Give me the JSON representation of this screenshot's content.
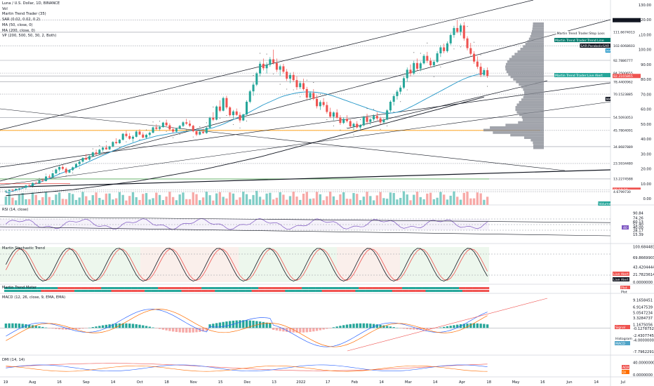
{
  "header": {
    "title": "Luna / U.S. Dollar, 1D, BINANCE",
    "indicators": [
      "Vol",
      "Martin Trend Trader (35)",
      "SAR (0.02, 0.02, 0.2)",
      "MA (50, close, 0)",
      "MA (200, close, 0)",
      "VP (200, 500, 50, 30, 2, Both)"
    ]
  },
  "panes": {
    "rsi": "RSI (14, close)",
    "stoch": "Martin Stochastic Trend",
    "mtm": "Martin Trend Meter",
    "macd": "MACD (12, 26, close, 9, EMA, EMA)",
    "dmi": "DMI (14, 14)"
  },
  "colors": {
    "up": "#26a69a",
    "down": "#ef5350",
    "ma50": "#2196c8",
    "ma200": "#131722",
    "sar": "#555555",
    "vp": "#8a8d96",
    "volUp": "#80cdc6",
    "volDown": "#f7a9a7",
    "accent": "#e91e63"
  },
  "chart_data": {
    "type": "candlestick",
    "symbol": "LUNAUSD",
    "price_axis_ticks": [
      "130.00",
      "120.00",
      "110.00",
      "100.00",
      "90.00",
      "80.00",
      "70.00",
      "60.00",
      "50.00",
      "40.00",
      "30.00",
      "20.00",
      "10.00",
      "0.00"
    ],
    "x_ticks": [
      "19",
      "Aug",
      "16",
      "Sep",
      "14",
      "Oct",
      "18",
      "Nov",
      "15",
      "Dec",
      "13",
      "2022",
      "17",
      "Feb",
      "14",
      "Mar",
      "14",
      "Apr",
      "18",
      "May",
      "16",
      "Jun",
      "14",
      "Jul"
    ],
    "price_tags": [
      {
        "value": "119.7690986",
        "color": "#131722"
      },
      {
        "value": "111.6674013",
        "color": "#ffffff"
      },
      {
        "value": "102.6068603",
        "color": "#ffffff"
      },
      {
        "value": "92.7886777",
        "color": "#ffffff"
      },
      {
        "value": "84.2500655",
        "color": "#ffffff"
      },
      {
        "value": "82.3165865",
        "color": "#ef5350"
      },
      {
        "value": "06:18:20",
        "color": "#ef5350"
      },
      {
        "value": "78.4400962",
        "color": "#ffffff"
      },
      {
        "value": "70.1523885",
        "color": "#ffffff"
      },
      {
        "value": "54.5093053",
        "color": "#ffffff"
      },
      {
        "value": "45.7804091",
        "color": "#ffffff"
      },
      {
        "value": "34.8687889",
        "color": "#ffffff"
      },
      {
        "value": "23.5934480",
        "color": "#ffffff"
      },
      {
        "value": "13.2274588",
        "color": "#ffffff"
      },
      {
        "value": "4.6799730",
        "color": "#ffffff"
      }
    ],
    "labels": [
      {
        "text": "Martin Trend Trader:Stop Loss",
        "color": "#ffffff"
      },
      {
        "text": "Martin Trend Trader:Trend Line",
        "color": "#00796b"
      },
      {
        "text": "SAR:ParabolicSAR",
        "color": "#131722"
      },
      {
        "text": "MA",
        "color": "#2196c8"
      },
      {
        "text": "Martin Trend Trader:Live Alert",
        "color": "#26a69a"
      },
      {
        "text": "MA",
        "color": "#131722"
      },
      {
        "text": "Volume",
        "color": "#26a69a"
      }
    ],
    "rsi_ticks": [
      "90.84",
      "74.26",
      "60.13",
      "51.40",
      "40.00",
      "28.17",
      "15.39"
    ],
    "rsi_tag": "40",
    "stoch_ticks": [
      "100.6844836",
      "69.8669903",
      "43.4204444",
      "21.7823614",
      "0.0000000"
    ],
    "stoch_tags": [
      "Live Alert",
      "Live Alert"
    ],
    "mtm_tags": [
      "Plot",
      "Plot"
    ],
    "macd_ticks": [
      "9.1658451",
      "6.9147539",
      "5.0547234",
      "3.3284737",
      "1.1675056",
      "-0.1278752",
      "-2.4307745",
      "-4.0000000",
      "-7.7962291"
    ],
    "macd_tags": [
      "Signal",
      "Histogram",
      "MACD"
    ],
    "dmi_ticks": [
      "40.0000000",
      "0.0000000"
    ],
    "dmi_tags": [
      "ADX",
      "DI"
    ],
    "price_range": [
      0,
      130
    ],
    "candles_ohlc": [
      [
        5,
        5.6,
        4.5,
        5.2
      ],
      [
        5.2,
        6.1,
        5.0,
        5.9
      ],
      [
        5.9,
        6.3,
        5.4,
        5.6
      ],
      [
        5.6,
        6.8,
        5.5,
        6.6
      ],
      [
        6.6,
        7.2,
        6.2,
        6.9
      ],
      [
        6.9,
        7.5,
        6.5,
        7.3
      ],
      [
        7.3,
        9.2,
        7.1,
        8.8
      ],
      [
        8.8,
        9.6,
        8.0,
        8.4
      ],
      [
        8.4,
        10.8,
        8.3,
        10.5
      ],
      [
        10.5,
        11.5,
        9.6,
        10.1
      ],
      [
        10.1,
        12.8,
        10.0,
        12.2
      ],
      [
        12.2,
        13.5,
        11.2,
        11.8
      ],
      [
        11.8,
        15.5,
        11.5,
        14.8
      ],
      [
        14.8,
        16.2,
        13.8,
        14.2
      ],
      [
        14.2,
        17.4,
        14.0,
        17.0
      ],
      [
        17.0,
        20.2,
        16.5,
        19.5
      ],
      [
        19.5,
        22.0,
        18.2,
        21.2
      ],
      [
        21.2,
        22.5,
        19.0,
        20.0
      ],
      [
        20.0,
        21.0,
        16.5,
        17.5
      ],
      [
        17.5,
        19.8,
        17.0,
        19.2
      ],
      [
        19.2,
        21.5,
        18.5,
        21.0
      ],
      [
        21.0,
        24.0,
        20.5,
        23.2
      ],
      [
        23.2,
        25.5,
        22.0,
        24.8
      ],
      [
        24.8,
        27.8,
        24.2,
        27.3
      ],
      [
        27.3,
        30.0,
        25.8,
        26.2
      ],
      [
        26.2,
        29.0,
        25.5,
        28.5
      ],
      [
        28.5,
        31.5,
        27.8,
        31.0
      ],
      [
        31.0,
        33.0,
        29.0,
        30.0
      ],
      [
        30.0,
        33.5,
        29.5,
        32.8
      ],
      [
        32.8,
        35.0,
        31.5,
        34.2
      ],
      [
        34.2,
        36.0,
        32.8,
        33.1
      ],
      [
        33.1,
        35.5,
        32.5,
        35.0
      ],
      [
        35.0,
        38.5,
        34.5,
        38.0
      ],
      [
        38.0,
        40.5,
        36.5,
        37.2
      ],
      [
        37.2,
        40.0,
        36.8,
        39.5
      ],
      [
        39.5,
        44.0,
        39.0,
        43.5
      ],
      [
        43.5,
        45.5,
        41.0,
        42.0
      ],
      [
        42.0,
        44.0,
        39.5,
        40.2
      ],
      [
        40.2,
        42.5,
        38.0,
        41.5
      ],
      [
        41.5,
        46.0,
        41.0,
        45.0
      ],
      [
        45.0,
        46.5,
        42.5,
        43.0
      ],
      [
        43.0,
        44.5,
        40.5,
        41.0
      ],
      [
        41.0,
        43.5,
        40.0,
        42.8
      ],
      [
        42.8,
        45.0,
        41.5,
        44.2
      ],
      [
        44.2,
        48.5,
        43.8,
        47.8
      ],
      [
        47.8,
        50.0,
        46.0,
        46.8
      ],
      [
        46.8,
        49.0,
        45.5,
        48.0
      ],
      [
        48.0,
        51.5,
        47.5,
        51.0
      ],
      [
        51.0,
        53.0,
        48.5,
        49.2
      ],
      [
        49.2,
        50.5,
        45.5,
        46.5
      ],
      [
        46.5,
        48.0,
        44.0,
        45.0
      ],
      [
        45.0,
        47.5,
        44.5,
        47.0
      ],
      [
        47.0,
        49.5,
        46.5,
        48.8
      ],
      [
        48.8,
        52.0,
        48.0,
        51.2
      ],
      [
        51.2,
        53.5,
        49.5,
        50.3
      ],
      [
        50.3,
        52.5,
        48.0,
        48.9
      ],
      [
        48.9,
        49.5,
        44.5,
        45.2
      ],
      [
        45.2,
        46.0,
        42.0,
        43.0
      ],
      [
        43.0,
        45.5,
        42.5,
        44.8
      ],
      [
        44.8,
        47.0,
        43.5,
        44.0
      ],
      [
        44.0,
        48.0,
        43.5,
        47.5
      ],
      [
        47.5,
        55.0,
        47.0,
        54.2
      ],
      [
        54.2,
        58.0,
        52.0,
        53.0
      ],
      [
        53.0,
        62.5,
        52.5,
        61.8
      ],
      [
        61.8,
        66.0,
        58.0,
        59.0
      ],
      [
        59.0,
        68.5,
        58.5,
        67.5
      ],
      [
        67.5,
        69.0,
        60.0,
        61.2
      ],
      [
        61.2,
        62.0,
        55.0,
        56.0
      ],
      [
        56.0,
        59.5,
        53.5,
        58.5
      ],
      [
        58.5,
        60.5,
        55.5,
        56.2
      ],
      [
        56.2,
        58.0,
        51.0,
        52.5
      ],
      [
        52.5,
        57.0,
        52.0,
        56.5
      ],
      [
        56.5,
        66.0,
        56.0,
        65.0
      ],
      [
        65.0,
        73.0,
        64.0,
        72.0
      ],
      [
        72.0,
        78.0,
        69.0,
        76.5
      ],
      [
        76.5,
        85.0,
        75.5,
        84.0
      ],
      [
        84.0,
        92.0,
        82.0,
        90.5
      ],
      [
        90.5,
        94.0,
        86.0,
        87.5
      ],
      [
        87.5,
        91.5,
        84.0,
        89.8
      ],
      [
        89.8,
        95.0,
        88.5,
        93.5
      ],
      [
        93.5,
        100.0,
        90.0,
        91.0
      ],
      [
        91.0,
        94.0,
        85.0,
        86.5
      ],
      [
        86.5,
        90.0,
        82.5,
        88.8
      ],
      [
        88.8,
        90.5,
        84.0,
        85.2
      ],
      [
        85.2,
        87.0,
        79.0,
        80.5
      ],
      [
        80.5,
        84.5,
        77.5,
        83.0
      ],
      [
        83.0,
        85.0,
        78.5,
        79.5
      ],
      [
        79.5,
        82.0,
        73.0,
        74.8
      ],
      [
        74.8,
        79.0,
        73.5,
        77.5
      ],
      [
        77.5,
        80.5,
        72.5,
        73.5
      ],
      [
        73.5,
        75.0,
        66.5,
        67.8
      ],
      [
        67.8,
        72.0,
        66.0,
        70.9
      ],
      [
        70.9,
        73.5,
        66.0,
        67.0
      ],
      [
        67.0,
        69.5,
        60.5,
        62.0
      ],
      [
        62.0,
        66.0,
        59.5,
        64.8
      ],
      [
        64.8,
        67.5,
        61.5,
        62.8
      ],
      [
        62.8,
        65.0,
        57.0,
        58.2
      ],
      [
        58.2,
        61.0,
        54.0,
        55.0
      ],
      [
        55.0,
        58.5,
        52.5,
        57.8
      ],
      [
        57.8,
        60.0,
        53.5,
        54.3
      ],
      [
        54.3,
        56.0,
        49.5,
        50.8
      ],
      [
        50.8,
        54.5,
        50.0,
        53.5
      ],
      [
        53.5,
        56.0,
        51.0,
        52.0
      ],
      [
        52.0,
        53.0,
        47.5,
        48.5
      ],
      [
        48.5,
        51.0,
        46.0,
        50.2
      ],
      [
        50.2,
        52.0,
        47.0,
        47.8
      ],
      [
        47.8,
        50.0,
        46.5,
        49.2
      ],
      [
        49.2,
        55.5,
        48.5,
        54.8
      ],
      [
        54.8,
        57.0,
        50.5,
        51.5
      ],
      [
        51.5,
        54.0,
        49.5,
        53.2
      ],
      [
        53.2,
        56.5,
        52.0,
        55.5
      ],
      [
        55.5,
        58.0,
        52.5,
        53.8
      ],
      [
        53.8,
        55.0,
        50.0,
        51.2
      ],
      [
        51.2,
        54.0,
        50.5,
        53.0
      ],
      [
        53.0,
        60.0,
        52.5,
        59.2
      ],
      [
        59.2,
        66.0,
        58.0,
        65.0
      ],
      [
        65.0,
        70.0,
        62.5,
        68.8
      ],
      [
        68.8,
        73.0,
        66.5,
        71.8
      ],
      [
        71.8,
        76.0,
        70.0,
        74.5
      ],
      [
        74.5,
        82.0,
        73.5,
        80.8
      ],
      [
        80.8,
        88.0,
        78.5,
        86.5
      ],
      [
        86.5,
        90.0,
        82.0,
        84.0
      ],
      [
        84.0,
        92.5,
        83.0,
        91.0
      ],
      [
        91.0,
        94.0,
        86.0,
        87.2
      ],
      [
        87.2,
        92.0,
        85.5,
        90.8
      ],
      [
        90.8,
        97.0,
        90.0,
        95.8
      ],
      [
        95.8,
        98.5,
        91.0,
        92.5
      ],
      [
        92.5,
        94.5,
        88.0,
        89.5
      ],
      [
        89.5,
        93.0,
        88.0,
        91.8
      ],
      [
        91.8,
        99.0,
        91.0,
        97.5
      ],
      [
        97.5,
        103.0,
        95.0,
        101.5
      ],
      [
        101.5,
        104.0,
        97.5,
        99.0
      ],
      [
        99.0,
        105.5,
        98.0,
        104.2
      ],
      [
        104.2,
        111.0,
        103.0,
        109.8
      ],
      [
        109.8,
        116.0,
        108.0,
        114.5
      ],
      [
        114.5,
        119.7,
        111.0,
        112.0
      ],
      [
        112.0,
        117.5,
        109.5,
        116.2
      ],
      [
        116.2,
        118.5,
        106.0,
        107.5
      ],
      [
        107.5,
        109.0,
        99.5,
        101.0
      ],
      [
        101.0,
        104.5,
        96.0,
        97.2
      ],
      [
        97.2,
        99.0,
        90.5,
        92.0
      ],
      [
        92.0,
        95.5,
        87.0,
        88.5
      ],
      [
        88.5,
        91.0,
        81.5,
        83.0
      ],
      [
        83.0,
        87.5,
        82.0,
        86.2
      ],
      [
        86.2,
        88.0,
        81.0,
        82.3
      ]
    ],
    "ma50": [
      4,
      4.5,
      5,
      5.6,
      6.2,
      6.9,
      7.6,
      8.4,
      9.2,
      10,
      10.8,
      11.7,
      12.6,
      13.5,
      14.5,
      15.5,
      16.5,
      17.4,
      18.3,
      19.2,
      20.1,
      21,
      22,
      23,
      24,
      25,
      26,
      27,
      28,
      29,
      30,
      31,
      32,
      33,
      34,
      35,
      35.8,
      36.6,
      37.4,
      38.2,
      39,
      39.6,
      40.2,
      40.8,
      41.4,
      42,
      42.4,
      42.8,
      43.2,
      43.6,
      44,
      44.3,
      44.6,
      44.9,
      45.2,
      45.5,
      45.8,
      46,
      46.2,
      46.4,
      46.6,
      47,
      47.6,
      48.4,
      49.2,
      50,
      51,
      52,
      53,
      54,
      55,
      56,
      57,
      58.2,
      59.4,
      60.6,
      61.8,
      63,
      64,
      65,
      66,
      67,
      68,
      68.8,
      69.4,
      70,
      70.5,
      71,
      71.3,
      71.5,
      71.6,
      71.6,
      71.5,
      71.3,
      71,
      70.6,
      70.1,
      69.5,
      68.8,
      68,
      67.2,
      66.4,
      65.6,
      64.8,
      64,
      63.2,
      62.4,
      61.6,
      60.8,
      60,
      59.3,
      58.6,
      58,
      57.6,
      57.4,
      57.4,
      57.6,
      58,
      58.6,
      59.4,
      60.4,
      61.5,
      62.6,
      63.8,
      65,
      66.2,
      67.4,
      68.6,
      69.8,
      71,
      72.2,
      73.4,
      74.6,
      75.8,
      77,
      78.2,
      79.3,
      80.3,
      81.2,
      82,
      82.7,
      83.3,
      83.8,
      84.2
    ],
    "ma200": [
      2,
      2.2,
      2.4,
      2.6,
      2.8,
      3,
      3.2,
      3.4,
      3.6,
      3.8,
      4,
      4.2,
      4.4,
      4.6,
      4.8,
      5,
      5.2,
      5.4,
      5.6,
      5.8,
      6,
      6.3,
      6.6,
      6.9,
      7.2,
      7.5,
      7.8,
      8.1,
      8.4,
      8.7,
      9,
      9.3,
      9.6,
      9.9,
      10.2,
      10.5,
      10.8,
      11.1,
      11.4,
      11.7,
      12,
      12.4,
      12.8,
      13.2,
      13.6,
      14,
      14.4,
      14.8,
      15.2,
      15.6,
      16,
      16.4,
      16.8,
      17.2,
      17.6,
      18,
      18.4,
      18.8,
      19.2,
      19.6,
      20,
      20.5,
      21,
      21.5,
      22,
      22.5,
      23,
      23.5,
      24,
      24.5,
      25,
      25.5,
      26,
      26.5,
      27,
      27.5,
      28,
      28.6,
      29.2,
      29.8,
      30.4,
      31,
      31.6,
      32.2,
      32.8,
      33.4,
      34,
      34.6,
      35.2,
      35.8,
      36.4,
      37,
      37.6,
      38.2,
      38.8,
      39.4,
      40,
      40.6,
      41.2,
      41.8,
      42.4,
      43,
      43.6,
      44.2,
      44.8,
      45.4,
      46,
      46.6,
      47.2,
      47.8,
      48.4,
      49,
      49.6,
      50.2,
      50.8,
      51.4,
      52,
      52.6,
      53.2,
      53.8,
      54.4,
      55,
      55.6,
      56.2,
      56.8,
      57.4,
      58,
      58.6,
      59.2,
      59.8,
      60.4,
      61,
      61.6,
      62.2,
      62.8,
      63.4,
      64,
      64.6,
      65.2,
      65.8,
      66.4,
      67,
      67.6,
      68.2
    ]
  }
}
